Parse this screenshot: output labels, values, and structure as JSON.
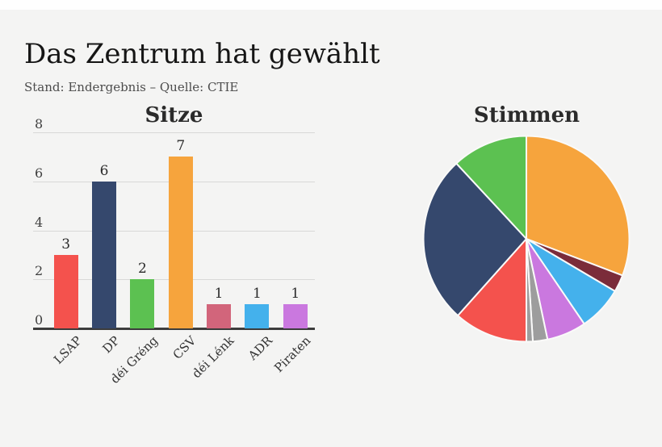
{
  "header": {
    "title": "Das Zentrum hat gewählt",
    "subtitle": "Stand: Endergebnis – Quelle: CTIE"
  },
  "chart_data": [
    {
      "type": "bar",
      "title": "Sitze",
      "categories": [
        "LSAP",
        "DP",
        "déi Gréng",
        "CSV",
        "déi Lénk",
        "ADR",
        "Piraten"
      ],
      "values": [
        3,
        6,
        2,
        7,
        1,
        1,
        1
      ],
      "bar_colors": [
        "#f4524d",
        "#35486d",
        "#5cc151",
        "#f6a43d",
        "#d2657b",
        "#44b1ec",
        "#ca78df"
      ],
      "yticks": [
        0,
        2,
        4,
        6,
        8
      ],
      "ylim": [
        0,
        8
      ],
      "grid": true,
      "show_value_labels": true,
      "xlabel": "",
      "ylabel": ""
    },
    {
      "type": "pie",
      "title": "Stimmen",
      "start_angle": "top",
      "direction": "clockwise",
      "labels_visible": false,
      "slices": [
        {
          "label": "CSV",
          "pct": 30.8,
          "color": "#f6a43d"
        },
        {
          "label": "unknown-dark-red",
          "pct": 2.7,
          "color": "#7b2c3a"
        },
        {
          "label": "ADR",
          "pct": 7.0,
          "color": "#44b1ec"
        },
        {
          "label": "Piraten",
          "pct": 6.2,
          "color": "#ca78df"
        },
        {
          "label": "unknown-gray-small",
          "pct": 2.3,
          "color": "#9d9d9d"
        },
        {
          "label": "unknown-gray-tiny",
          "pct": 1.0,
          "color": "#9d9d9d"
        },
        {
          "label": "LSAP",
          "pct": 11.6,
          "color": "#f4524d"
        },
        {
          "label": "DP",
          "pct": 26.5,
          "color": "#35486d"
        },
        {
          "label": "déi Gréng",
          "pct": 11.9,
          "color": "#5cc151"
        }
      ]
    }
  ],
  "colors": {
    "background": "#f4f4f3",
    "top_strip": "#fefefe",
    "gridline": "#d8d8d7",
    "axis_line": "#3c3c3c",
    "title_text": "#151515",
    "subtitle_text": "#4c4c4c",
    "chart_title_text": "#2b2b2b",
    "tick_text": "#3f3f3f",
    "pie_slice_separator": "#fafaf9"
  }
}
